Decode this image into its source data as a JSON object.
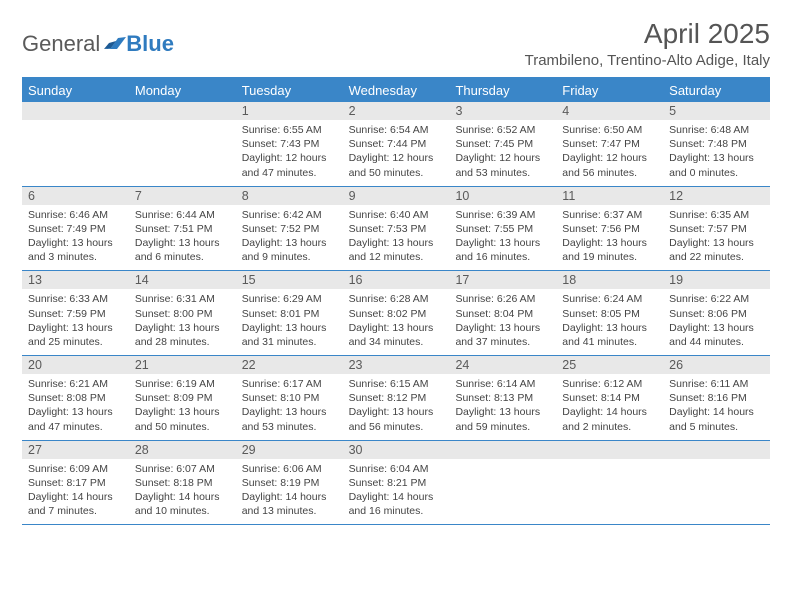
{
  "logo": {
    "word1": "General",
    "word2": "Blue"
  },
  "title": "April 2025",
  "subtitle": "Trambileno, Trentino-Alto Adige, Italy",
  "colors": {
    "brand_blue": "#3a86c8",
    "header_bg": "#3a86c8",
    "header_text": "#ffffff",
    "daynum_bg": "#e8e8e8",
    "text": "#444444",
    "title_text": "#555555",
    "page_bg": "#ffffff"
  },
  "calendar": {
    "headers": [
      "Sunday",
      "Monday",
      "Tuesday",
      "Wednesday",
      "Thursday",
      "Friday",
      "Saturday"
    ],
    "weeks": [
      [
        null,
        null,
        {
          "num": "1",
          "sunrise": "Sunrise: 6:55 AM",
          "sunset": "Sunset: 7:43 PM",
          "day1": "Daylight: 12 hours",
          "day2": "and 47 minutes."
        },
        {
          "num": "2",
          "sunrise": "Sunrise: 6:54 AM",
          "sunset": "Sunset: 7:44 PM",
          "day1": "Daylight: 12 hours",
          "day2": "and 50 minutes."
        },
        {
          "num": "3",
          "sunrise": "Sunrise: 6:52 AM",
          "sunset": "Sunset: 7:45 PM",
          "day1": "Daylight: 12 hours",
          "day2": "and 53 minutes."
        },
        {
          "num": "4",
          "sunrise": "Sunrise: 6:50 AM",
          "sunset": "Sunset: 7:47 PM",
          "day1": "Daylight: 12 hours",
          "day2": "and 56 minutes."
        },
        {
          "num": "5",
          "sunrise": "Sunrise: 6:48 AM",
          "sunset": "Sunset: 7:48 PM",
          "day1": "Daylight: 13 hours",
          "day2": "and 0 minutes."
        }
      ],
      [
        {
          "num": "6",
          "sunrise": "Sunrise: 6:46 AM",
          "sunset": "Sunset: 7:49 PM",
          "day1": "Daylight: 13 hours",
          "day2": "and 3 minutes."
        },
        {
          "num": "7",
          "sunrise": "Sunrise: 6:44 AM",
          "sunset": "Sunset: 7:51 PM",
          "day1": "Daylight: 13 hours",
          "day2": "and 6 minutes."
        },
        {
          "num": "8",
          "sunrise": "Sunrise: 6:42 AM",
          "sunset": "Sunset: 7:52 PM",
          "day1": "Daylight: 13 hours",
          "day2": "and 9 minutes."
        },
        {
          "num": "9",
          "sunrise": "Sunrise: 6:40 AM",
          "sunset": "Sunset: 7:53 PM",
          "day1": "Daylight: 13 hours",
          "day2": "and 12 minutes."
        },
        {
          "num": "10",
          "sunrise": "Sunrise: 6:39 AM",
          "sunset": "Sunset: 7:55 PM",
          "day1": "Daylight: 13 hours",
          "day2": "and 16 minutes."
        },
        {
          "num": "11",
          "sunrise": "Sunrise: 6:37 AM",
          "sunset": "Sunset: 7:56 PM",
          "day1": "Daylight: 13 hours",
          "day2": "and 19 minutes."
        },
        {
          "num": "12",
          "sunrise": "Sunrise: 6:35 AM",
          "sunset": "Sunset: 7:57 PM",
          "day1": "Daylight: 13 hours",
          "day2": "and 22 minutes."
        }
      ],
      [
        {
          "num": "13",
          "sunrise": "Sunrise: 6:33 AM",
          "sunset": "Sunset: 7:59 PM",
          "day1": "Daylight: 13 hours",
          "day2": "and 25 minutes."
        },
        {
          "num": "14",
          "sunrise": "Sunrise: 6:31 AM",
          "sunset": "Sunset: 8:00 PM",
          "day1": "Daylight: 13 hours",
          "day2": "and 28 minutes."
        },
        {
          "num": "15",
          "sunrise": "Sunrise: 6:29 AM",
          "sunset": "Sunset: 8:01 PM",
          "day1": "Daylight: 13 hours",
          "day2": "and 31 minutes."
        },
        {
          "num": "16",
          "sunrise": "Sunrise: 6:28 AM",
          "sunset": "Sunset: 8:02 PM",
          "day1": "Daylight: 13 hours",
          "day2": "and 34 minutes."
        },
        {
          "num": "17",
          "sunrise": "Sunrise: 6:26 AM",
          "sunset": "Sunset: 8:04 PM",
          "day1": "Daylight: 13 hours",
          "day2": "and 37 minutes."
        },
        {
          "num": "18",
          "sunrise": "Sunrise: 6:24 AM",
          "sunset": "Sunset: 8:05 PM",
          "day1": "Daylight: 13 hours",
          "day2": "and 41 minutes."
        },
        {
          "num": "19",
          "sunrise": "Sunrise: 6:22 AM",
          "sunset": "Sunset: 8:06 PM",
          "day1": "Daylight: 13 hours",
          "day2": "and 44 minutes."
        }
      ],
      [
        {
          "num": "20",
          "sunrise": "Sunrise: 6:21 AM",
          "sunset": "Sunset: 8:08 PM",
          "day1": "Daylight: 13 hours",
          "day2": "and 47 minutes."
        },
        {
          "num": "21",
          "sunrise": "Sunrise: 6:19 AM",
          "sunset": "Sunset: 8:09 PM",
          "day1": "Daylight: 13 hours",
          "day2": "and 50 minutes."
        },
        {
          "num": "22",
          "sunrise": "Sunrise: 6:17 AM",
          "sunset": "Sunset: 8:10 PM",
          "day1": "Daylight: 13 hours",
          "day2": "and 53 minutes."
        },
        {
          "num": "23",
          "sunrise": "Sunrise: 6:15 AM",
          "sunset": "Sunset: 8:12 PM",
          "day1": "Daylight: 13 hours",
          "day2": "and 56 minutes."
        },
        {
          "num": "24",
          "sunrise": "Sunrise: 6:14 AM",
          "sunset": "Sunset: 8:13 PM",
          "day1": "Daylight: 13 hours",
          "day2": "and 59 minutes."
        },
        {
          "num": "25",
          "sunrise": "Sunrise: 6:12 AM",
          "sunset": "Sunset: 8:14 PM",
          "day1": "Daylight: 14 hours",
          "day2": "and 2 minutes."
        },
        {
          "num": "26",
          "sunrise": "Sunrise: 6:11 AM",
          "sunset": "Sunset: 8:16 PM",
          "day1": "Daylight: 14 hours",
          "day2": "and 5 minutes."
        }
      ],
      [
        {
          "num": "27",
          "sunrise": "Sunrise: 6:09 AM",
          "sunset": "Sunset: 8:17 PM",
          "day1": "Daylight: 14 hours",
          "day2": "and 7 minutes."
        },
        {
          "num": "28",
          "sunrise": "Sunrise: 6:07 AM",
          "sunset": "Sunset: 8:18 PM",
          "day1": "Daylight: 14 hours",
          "day2": "and 10 minutes."
        },
        {
          "num": "29",
          "sunrise": "Sunrise: 6:06 AM",
          "sunset": "Sunset: 8:19 PM",
          "day1": "Daylight: 14 hours",
          "day2": "and 13 minutes."
        },
        {
          "num": "30",
          "sunrise": "Sunrise: 6:04 AM",
          "sunset": "Sunset: 8:21 PM",
          "day1": "Daylight: 14 hours",
          "day2": "and 16 minutes."
        },
        null,
        null,
        null
      ]
    ]
  }
}
